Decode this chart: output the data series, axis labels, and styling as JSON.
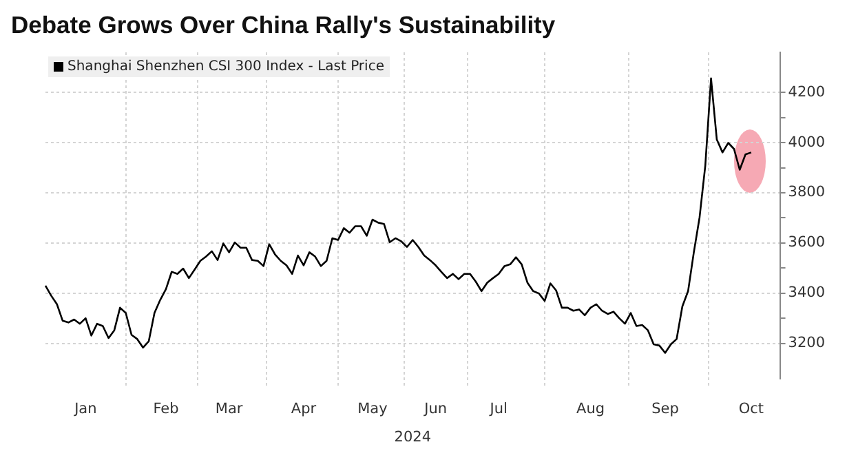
{
  "chart_data": {
    "type": "line",
    "title": "Debate Grows Over China Rally's Sustainability",
    "xlabel": "2024",
    "categories": [
      null,
      null,
      null,
      null,
      null,
      null,
      null,
      "Jan",
      null,
      null,
      null,
      null,
      null,
      null,
      null,
      null,
      null,
      null,
      null,
      null,
      null,
      "Feb",
      null,
      null,
      null,
      null,
      null,
      null,
      null,
      null,
      null,
      null,
      "Mar",
      null,
      null,
      null,
      null,
      null,
      null,
      null,
      null,
      null,
      null,
      null,
      null,
      "Apr",
      null,
      null,
      null,
      null,
      null,
      null,
      null,
      null,
      null,
      null,
      null,
      "May",
      null,
      null,
      null,
      null,
      null,
      null,
      null,
      null,
      null,
      null,
      "Jun",
      null,
      null,
      null,
      null,
      null,
      null,
      null,
      null,
      null,
      null,
      "Jul",
      null,
      null,
      null,
      null,
      null,
      null,
      null,
      null,
      null,
      null,
      null,
      null,
      null,
      null,
      null,
      "Aug",
      null,
      null,
      null,
      null,
      null,
      null,
      null,
      null,
      null,
      null,
      null,
      null,
      "Sep",
      null,
      null,
      null,
      null,
      null,
      null,
      null,
      null,
      null,
      null,
      null,
      null,
      null,
      null,
      "Oct",
      null,
      null,
      null,
      null,
      null
    ],
    "series": [
      {
        "name": "Shanghai Shenzhen CSI 300 Index - Last Price",
        "color": "#000000",
        "values": [
          3430,
          3390,
          3356,
          3290,
          3283,
          3295,
          3278,
          3300,
          3231,
          3278,
          3269,
          3221,
          3252,
          3342,
          3321,
          3234,
          3217,
          3183,
          3208,
          3321,
          3373,
          3416,
          3485,
          3477,
          3498,
          3460,
          3494,
          3529,
          3546,
          3567,
          3532,
          3598,
          3563,
          3602,
          3581,
          3581,
          3532,
          3529,
          3508,
          3595,
          3555,
          3529,
          3511,
          3477,
          3550,
          3511,
          3563,
          3546,
          3508,
          3529,
          3619,
          3612,
          3659,
          3641,
          3667,
          3667,
          3629,
          3693,
          3681,
          3676,
          3603,
          3619,
          3607,
          3584,
          3612,
          3584,
          3550,
          3532,
          3511,
          3485,
          3460,
          3477,
          3456,
          3477,
          3477,
          3446,
          3408,
          3442,
          3460,
          3477,
          3508,
          3515,
          3543,
          3515,
          3442,
          3408,
          3399,
          3369,
          3439,
          3411,
          3342,
          3342,
          3330,
          3335,
          3312,
          3342,
          3356,
          3330,
          3317,
          3326,
          3300,
          3278,
          3321,
          3269,
          3273,
          3252,
          3196,
          3191,
          3162,
          3196,
          3217,
          3347,
          3408,
          3563,
          3702,
          3909,
          4256,
          4013,
          3961,
          3999,
          3975,
          3892,
          3953,
          3961,
          null,
          null,
          null,
          null,
          null
        ]
      }
    ],
    "ylim": [
      3060,
      4360
    ],
    "yticks": [
      3200,
      {
        "value": 3300,
        "label": null
      },
      3400,
      {
        "value": 3500,
        "label": null
      },
      3600,
      {
        "value": 3700,
        "label": null
      },
      3800,
      {
        "value": 3900,
        "label": null
      },
      4000,
      {
        "value": 4100,
        "label": null
      },
      4200
    ],
    "grid": true,
    "legend": "top left",
    "marker": "none",
    "line_style": "solid"
  }
}
